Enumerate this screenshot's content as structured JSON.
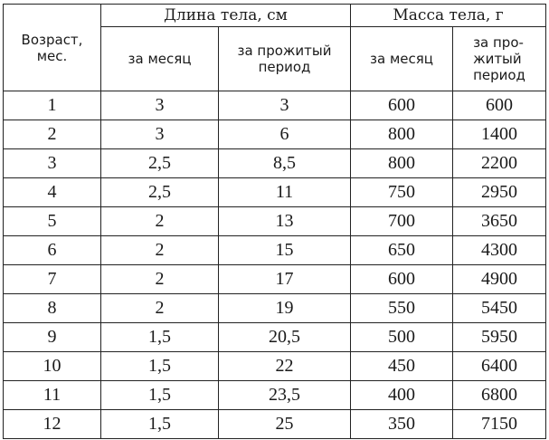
{
  "table": {
    "age_header": "Возраст,\nмес.",
    "length_group": "Длина тела, см",
    "mass_group": "Масса тела, г",
    "length_month": "за месяц",
    "length_period": "за прожитый\nпериод",
    "mass_month": "за месяц",
    "mass_period": "за про-\nжитый\nпериод",
    "rows": [
      {
        "age": "1",
        "len_month": "3",
        "len_total": "3",
        "mass_month": "600",
        "mass_total": "600"
      },
      {
        "age": "2",
        "len_month": "3",
        "len_total": "6",
        "mass_month": "800",
        "mass_total": "1400"
      },
      {
        "age": "3",
        "len_month": "2,5",
        "len_total": "8,5",
        "mass_month": "800",
        "mass_total": "2200"
      },
      {
        "age": "4",
        "len_month": "2,5",
        "len_total": "11",
        "mass_month": "750",
        "mass_total": "2950"
      },
      {
        "age": "5",
        "len_month": "2",
        "len_total": "13",
        "mass_month": "700",
        "mass_total": "3650"
      },
      {
        "age": "6",
        "len_month": "2",
        "len_total": "15",
        "mass_month": "650",
        "mass_total": "4300"
      },
      {
        "age": "7",
        "len_month": "2",
        "len_total": "17",
        "mass_month": "600",
        "mass_total": "4900"
      },
      {
        "age": "8",
        "len_month": "2",
        "len_total": "19",
        "mass_month": "550",
        "mass_total": "5450"
      },
      {
        "age": "9",
        "len_month": "1,5",
        "len_total": "20,5",
        "mass_month": "500",
        "mass_total": "5950"
      },
      {
        "age": "10",
        "len_month": "1,5",
        "len_total": "22",
        "mass_month": "450",
        "mass_total": "6400"
      },
      {
        "age": "11",
        "len_month": "1,5",
        "len_total": "23,5",
        "mass_month": "400",
        "mass_total": "6800"
      },
      {
        "age": "12",
        "len_month": "1,5",
        "len_total": "25",
        "mass_month": "350",
        "mass_total": "7150"
      }
    ]
  }
}
